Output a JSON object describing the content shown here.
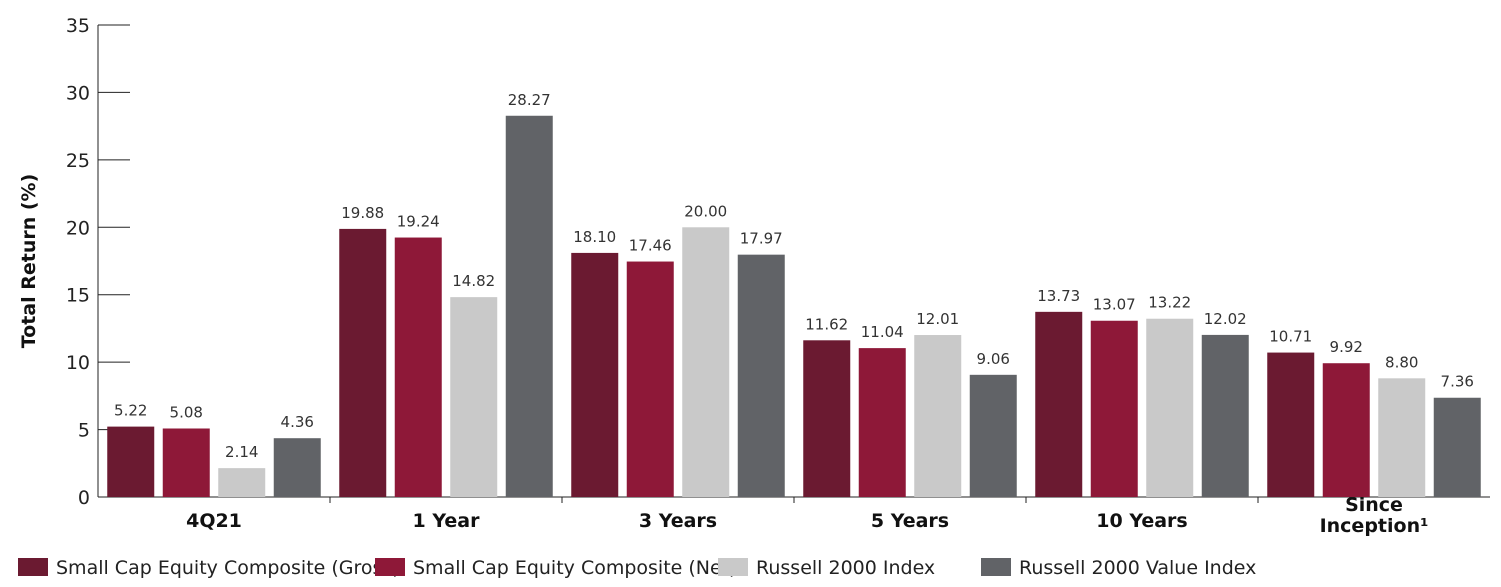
{
  "chart_data": {
    "type": "bar",
    "title": "",
    "xlabel": "",
    "ylabel": "Total Return (%)",
    "ylim": [
      0,
      35
    ],
    "yticks": [
      0,
      5,
      10,
      15,
      20,
      25,
      30,
      35
    ],
    "categories": [
      [
        "4Q21"
      ],
      [
        "1 Year"
      ],
      [
        "3 Years"
      ],
      [
        "5 Years"
      ],
      [
        "10 Years"
      ],
      [
        "Since",
        "Inception¹"
      ]
    ],
    "series": [
      {
        "name": "Small Cap Equity Composite (Gross)",
        "color": "#6b1a31",
        "values": [
          5.22,
          19.88,
          18.1,
          11.62,
          13.73,
          10.71
        ],
        "labels": [
          "5.22",
          "19.88",
          "18.10",
          "11.62",
          "13.73",
          "10.71"
        ]
      },
      {
        "name": "Small Cap Equity Composite (Net)",
        "color": "#8e1838",
        "values": [
          5.08,
          19.24,
          17.46,
          11.04,
          13.07,
          9.92
        ],
        "labels": [
          "5.08",
          "19.24",
          "17.46",
          "11.04",
          "13.07",
          "9.92"
        ]
      },
      {
        "name": "Russell 2000 Index",
        "color": "#c9c9c9",
        "values": [
          2.14,
          14.82,
          20.0,
          12.01,
          13.22,
          8.8
        ],
        "labels": [
          "2.14",
          "14.82",
          "20.00",
          "12.01",
          "13.22",
          "8.80"
        ]
      },
      {
        "name": "Russell 2000 Value Index",
        "color": "#616367",
        "values": [
          4.36,
          28.27,
          17.97,
          9.06,
          12.02,
          7.36
        ],
        "labels": [
          "4.36",
          "28.27",
          "17.97",
          "9.06",
          "12.02",
          "7.36"
        ]
      }
    ],
    "grid": false,
    "legend_position": "bottom"
  }
}
